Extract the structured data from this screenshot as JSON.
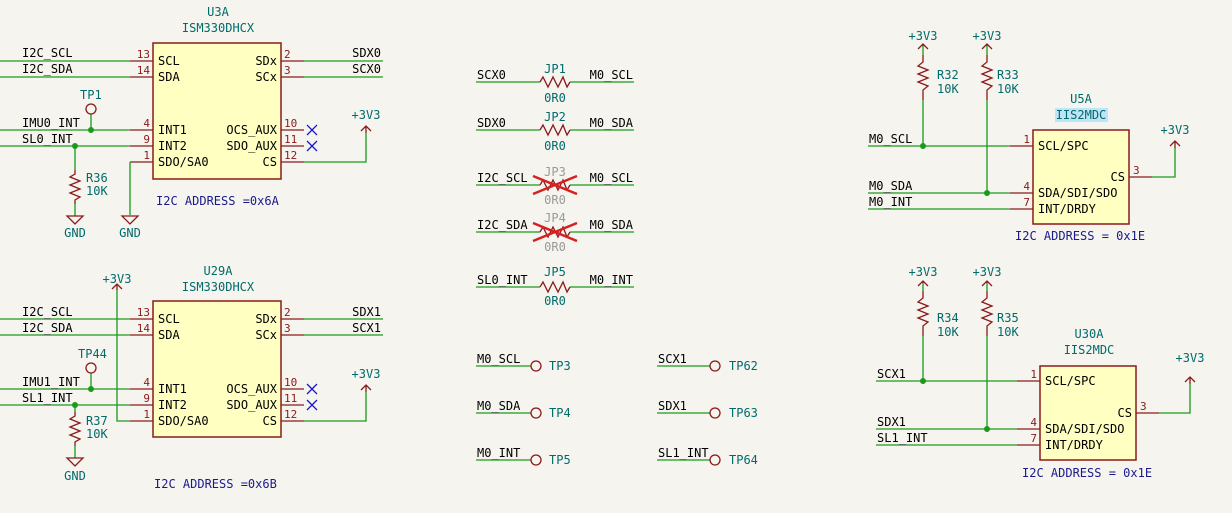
{
  "u3a": {
    "ref": "U3A",
    "value": "ISM330DHCX",
    "note": "I2C ADDRESS =0x6A",
    "pins_left": [
      {
        "name": "SCL",
        "num": "13"
      },
      {
        "name": "SDA",
        "num": "14"
      },
      {
        "name": "INT1",
        "num": "4"
      },
      {
        "name": "INT2",
        "num": "9"
      },
      {
        "name": "SDO/SA0",
        "num": "1"
      }
    ],
    "pins_right": [
      {
        "name": "SDx",
        "num": "2"
      },
      {
        "name": "SCx",
        "num": "3"
      },
      {
        "name": "OCS_AUX",
        "num": "10"
      },
      {
        "name": "SDO_AUX",
        "num": "11"
      },
      {
        "name": "CS",
        "num": "12"
      }
    ],
    "nets": {
      "scl": "I2C_SCL",
      "sda": "I2C_SDA",
      "int1": "IMU0_INT",
      "int2": "SL0_INT",
      "sdx": "SDX0",
      "scx": "SCX0"
    }
  },
  "u29a": {
    "ref": "U29A",
    "value": "ISM330DHCX",
    "note": "I2C ADDRESS =0x6B",
    "pins_left": [
      {
        "name": "SCL",
        "num": "13"
      },
      {
        "name": "SDA",
        "num": "14"
      },
      {
        "name": "INT1",
        "num": "4"
      },
      {
        "name": "INT2",
        "num": "9"
      },
      {
        "name": "SDO/SA0",
        "num": "1"
      }
    ],
    "pins_right": [
      {
        "name": "SDx",
        "num": "2"
      },
      {
        "name": "SCx",
        "num": "3"
      },
      {
        "name": "OCS_AUX",
        "num": "10"
      },
      {
        "name": "SDO_AUX",
        "num": "11"
      },
      {
        "name": "CS",
        "num": "12"
      }
    ],
    "nets": {
      "scl": "I2C_SCL",
      "sda": "I2C_SDA",
      "int1": "IMU1_INT",
      "int2": "SL1_INT",
      "sdx": "SDX1",
      "scx": "SCX1"
    }
  },
  "u5a": {
    "ref": "U5A",
    "value": "IIS2MDC",
    "note": "I2C ADDRESS = 0x1E",
    "pins_left": [
      {
        "name": "SCL/SPC",
        "num": "1"
      },
      {
        "name": "SDA/SDI/SDO",
        "num": "4"
      },
      {
        "name": "INT/DRDY",
        "num": "7"
      }
    ],
    "pins_right": [
      {
        "name": "CS",
        "num": "3"
      }
    ],
    "nets": {
      "scl": "M0_SCL",
      "sda": "M0_SDA",
      "int": "M0_INT"
    }
  },
  "u30a": {
    "ref": "U30A",
    "value": "IIS2MDC",
    "note": "I2C ADDRESS = 0x1E",
    "pins_left": [
      {
        "name": "SCL/SPC",
        "num": "1"
      },
      {
        "name": "SDA/SDI/SDO",
        "num": "4"
      },
      {
        "name": "INT/DRDY",
        "num": "7"
      }
    ],
    "pins_right": [
      {
        "name": "CS",
        "num": "3"
      }
    ],
    "nets": {
      "scl": "SCX1",
      "sda": "SDX1",
      "int": "SL1_INT"
    }
  },
  "resistors": {
    "r32": {
      "ref": "R32",
      "value": "10K"
    },
    "r33": {
      "ref": "R33",
      "value": "10K"
    },
    "r34": {
      "ref": "R34",
      "value": "10K"
    },
    "r35": {
      "ref": "R35",
      "value": "10K"
    },
    "r36": {
      "ref": "R36",
      "value": "10K"
    },
    "r37": {
      "ref": "R37",
      "value": "10K"
    }
  },
  "jumpers": [
    {
      "ref": "JP1",
      "value": "0R0",
      "left": "SCX0",
      "right": "M0_SCL",
      "dnp": false
    },
    {
      "ref": "JP2",
      "value": "0R0",
      "left": "SDX0",
      "right": "M0_SDA",
      "dnp": false
    },
    {
      "ref": "JP3",
      "value": "0R0",
      "left": "I2C_SCL",
      "right": "M0_SCL",
      "dnp": true
    },
    {
      "ref": "JP4",
      "value": "0R0",
      "left": "I2C_SDA",
      "right": "M0_SDA",
      "dnp": true
    },
    {
      "ref": "JP5",
      "value": "0R0",
      "left": "SL0_INT",
      "right": "M0_INT",
      "dnp": false
    }
  ],
  "testpoints": {
    "tp1": "TP1",
    "tp44": "TP44",
    "list": [
      {
        "net": "M0_SCL",
        "ref": "TP3"
      },
      {
        "net": "M0_SDA",
        "ref": "TP4"
      },
      {
        "net": "M0_INT",
        "ref": "TP5"
      },
      {
        "net": "SCX1",
        "ref": "TP62"
      },
      {
        "net": "SDX1",
        "ref": "TP63"
      },
      {
        "net": "SL1_INT",
        "ref": "TP64"
      }
    ]
  },
  "power": {
    "vcc": "+3V3",
    "gnd": "GND"
  },
  "colors": {
    "wire": "#1a9a1a",
    "part": "#8b1a1a",
    "fill": "#ffffc2",
    "label": "#006b6b",
    "nc": "#1a1acc",
    "dnp": "#d42020",
    "background": "#f5f4ef"
  }
}
